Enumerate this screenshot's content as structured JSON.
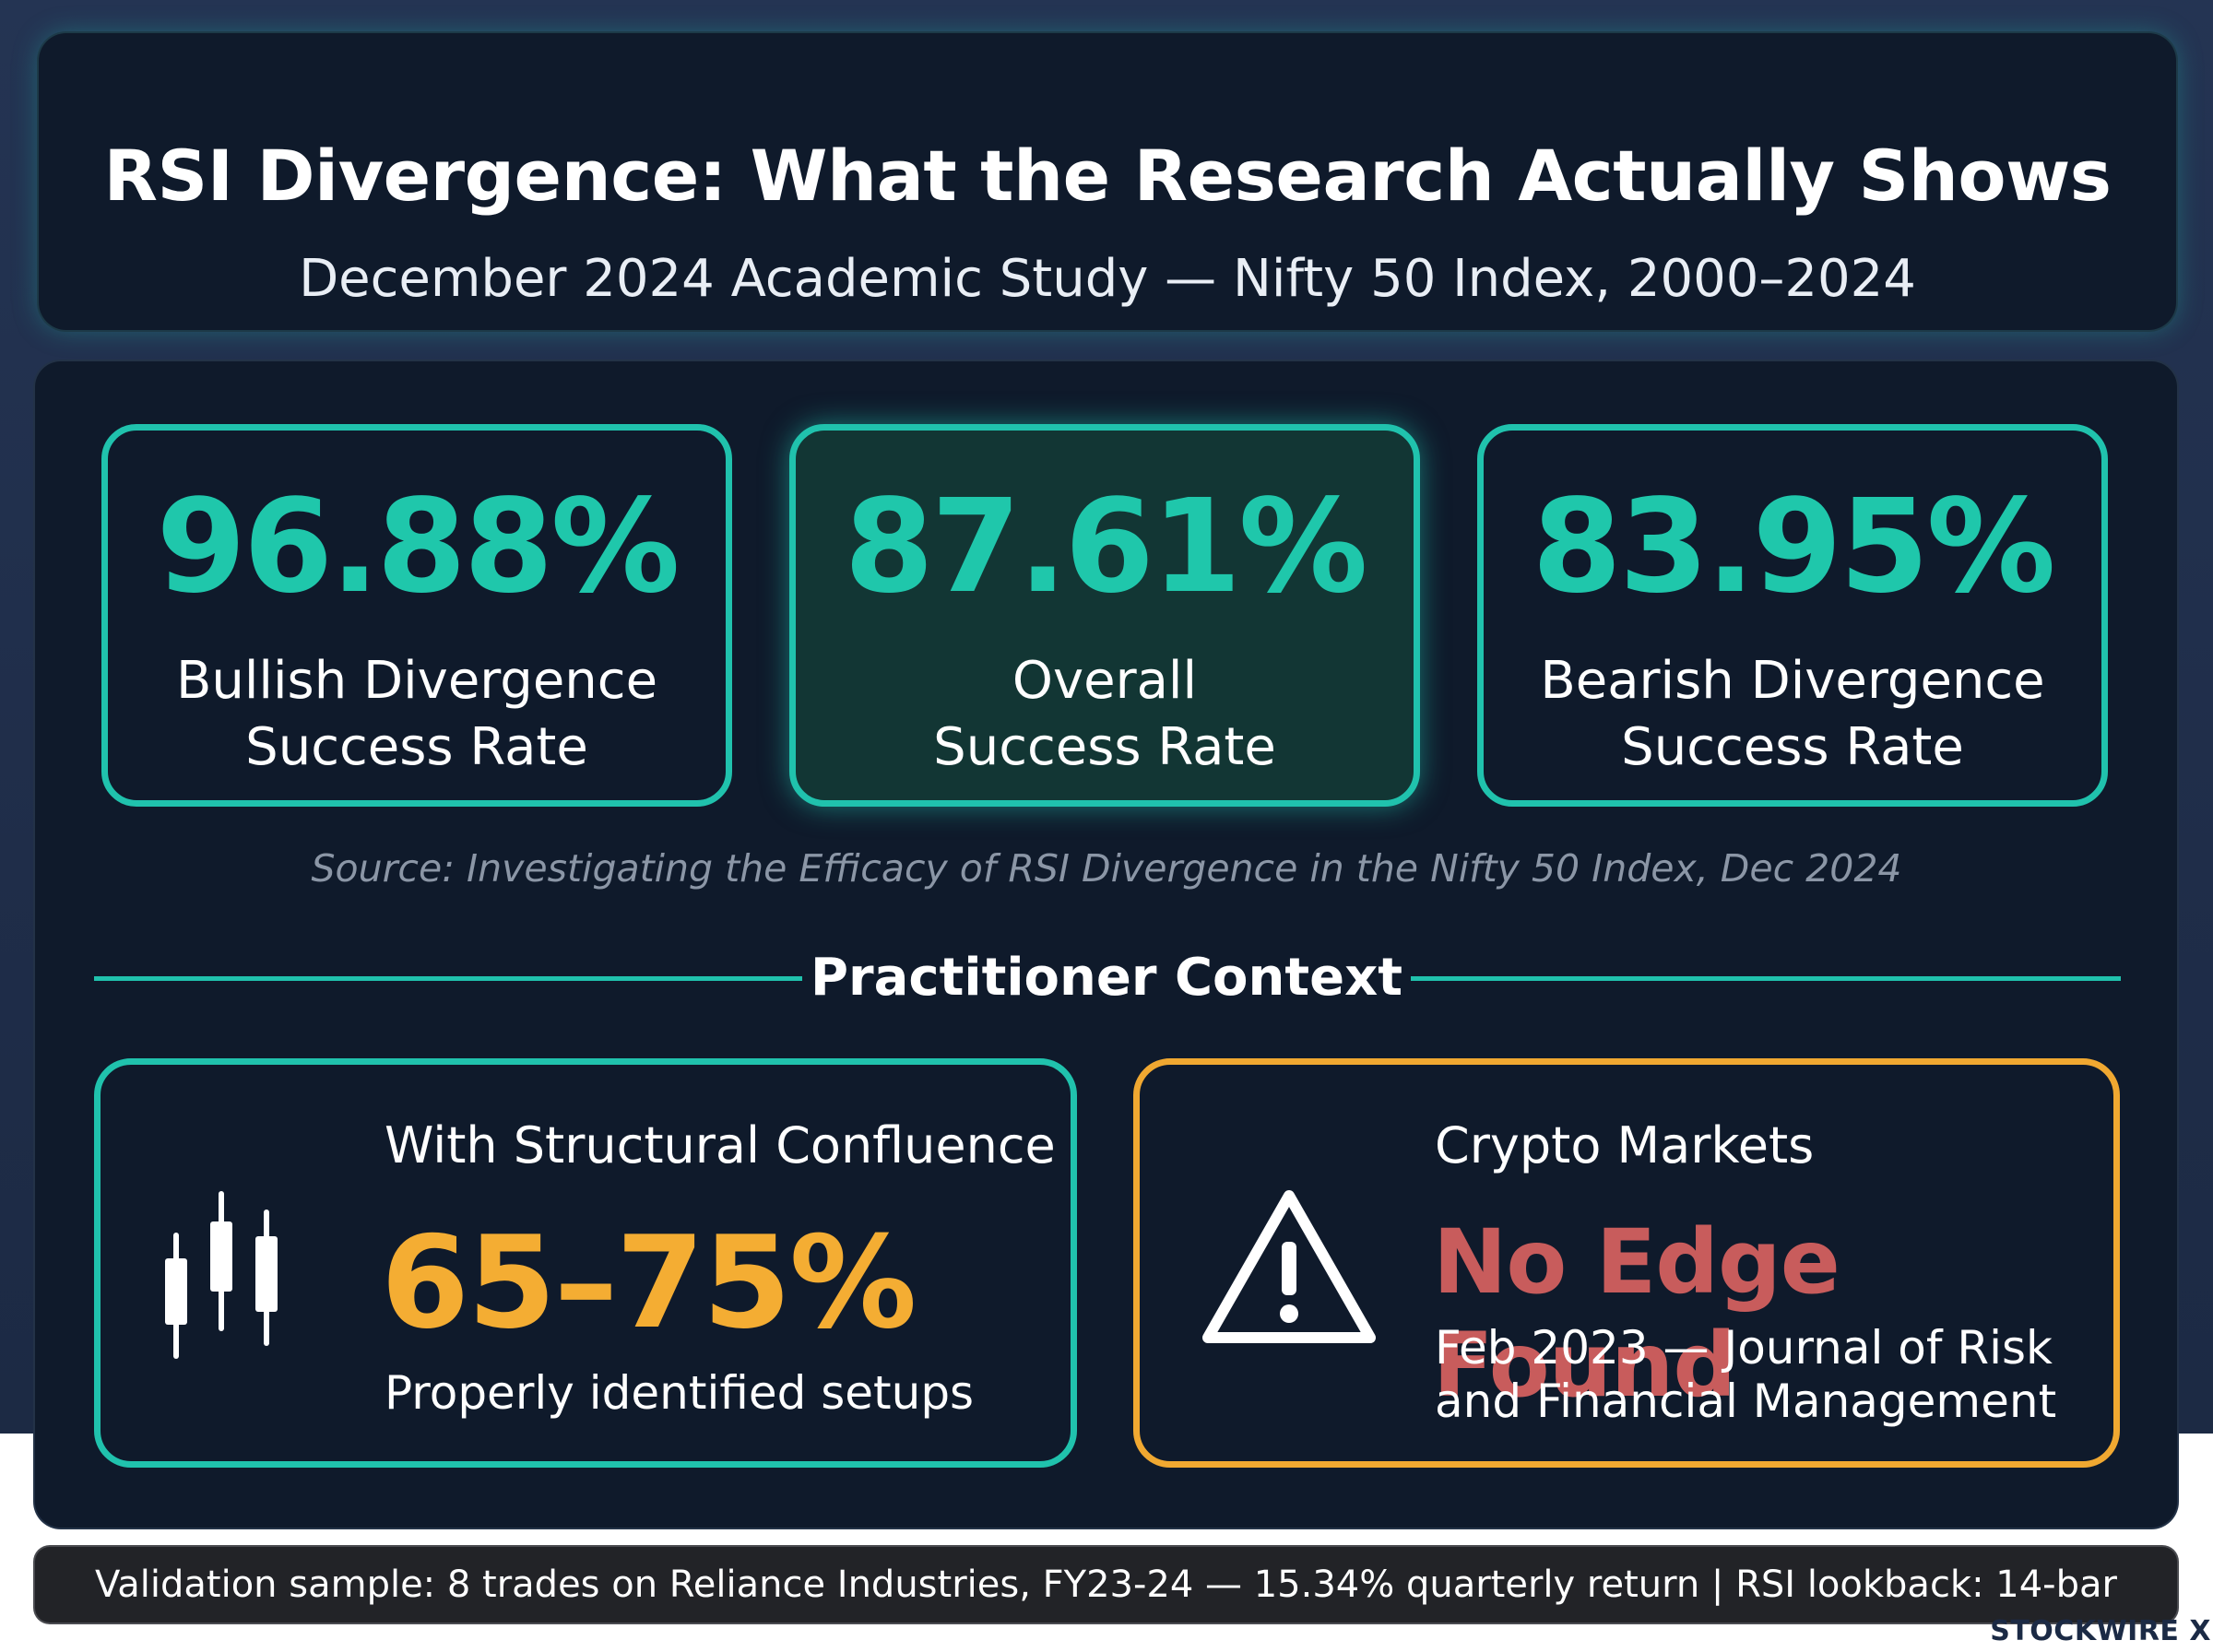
{
  "header": {
    "title": "RSI Divergence: What the Research Actually Shows",
    "subtitle": "December 2024 Academic Study — Nifty 50 Index, 2000–2024"
  },
  "stats": [
    {
      "value": "96.88%",
      "label_line1": "Bullish Divergence",
      "label_line2": "Success Rate"
    },
    {
      "value": "87.61%",
      "label_line1": "Overall",
      "label_line2": "Success Rate"
    },
    {
      "value": "83.95%",
      "label_line1": "Bearish Divergence",
      "label_line2": "Success Rate"
    }
  ],
  "source": "Source: Investigating the Efficacy of RSI Divergence in the Nifty 50 Index, Dec 2024",
  "section_title": "Practitioner Context",
  "confluence_card": {
    "title": "With Structural Confluence",
    "value": "65–75%",
    "caption": "Properly identified setups",
    "icon": "candlestick-chart-icon"
  },
  "crypto_card": {
    "title": "Crypto Markets",
    "headline": "No Edge Found",
    "citation_line1": "Feb 2023 — Journal of Risk",
    "citation_line2": "and Financial Management",
    "icon": "warning-triangle-icon"
  },
  "footer": {
    "text": "Validation sample: 8 trades on Reliance Industries, FY23-24 — 15.34% quarterly return | RSI lookback: 14-bar"
  },
  "brand": "STOCKWIRE X",
  "colors": {
    "teal": "#20c2ad",
    "amber": "#f0a831",
    "red": "#c85c5c",
    "panel": "#0f1a2b",
    "background": "#243453"
  }
}
